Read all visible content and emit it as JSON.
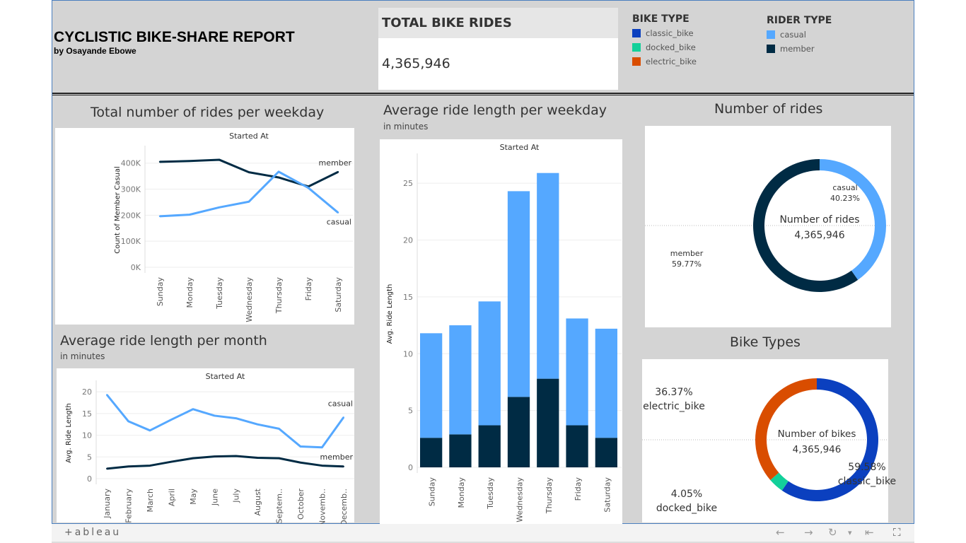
{
  "header": {
    "title": "CYCLISTIC BIKE-SHARE REPORT",
    "subtitle": "by Osayande Ebowe"
  },
  "kpi": {
    "label": "TOTAL BIKE RIDES",
    "value": "4,365,946"
  },
  "legends": {
    "bike_type": {
      "title": "BIKE TYPE",
      "items": [
        {
          "label": "classic_bike",
          "color": "#0b40bf"
        },
        {
          "label": "docked_bike",
          "color": "#13d09a"
        },
        {
          "label": "electric_bike",
          "color": "#d94d00"
        }
      ]
    },
    "rider_type": {
      "title": "RIDER TYPE",
      "items": [
        {
          "label": "casual",
          "color": "#55a8ff"
        },
        {
          "label": "member",
          "color": "#002b44"
        }
      ]
    }
  },
  "footer": {
    "brand": "+ableau",
    "back": "←",
    "forward": "→",
    "refresh": "↻",
    "dropdown": "▾",
    "reset": "⇤",
    "fullscreen": "⛶"
  },
  "chart_data": [
    {
      "id": "weekday_count",
      "type": "line",
      "title": "Total number of rides per weekday",
      "header": "Started At",
      "ylabel": "Count of Member Casual",
      "categories": [
        "Sunday",
        "Monday",
        "Tuesday",
        "Wednesday",
        "Thursday",
        "Friday",
        "Saturday"
      ],
      "yticks": [
        "0K",
        "100K",
        "200K",
        "300K",
        "400K"
      ],
      "ylim": [
        0,
        440000
      ],
      "grid": true,
      "series": [
        {
          "name": "member",
          "color": "#002b44",
          "values": [
            405000,
            408000,
            413000,
            365000,
            345000,
            310000,
            366000
          ]
        },
        {
          "name": "casual",
          "color": "#55a8ff",
          "values": [
            196000,
            202000,
            230000,
            252000,
            367000,
            305000,
            210000
          ]
        }
      ]
    },
    {
      "id": "month_len",
      "type": "line",
      "title": "Average ride length per month",
      "subtitle": "in minutes",
      "header": "Started At",
      "ylabel": "Avg. Ride Length",
      "categories": [
        "January",
        "February",
        "March",
        "April",
        "May",
        "June",
        "July",
        "August",
        "Septem..",
        "October",
        "Novemb..",
        "Decemb.."
      ],
      "yticks": [
        "0",
        "5",
        "10",
        "15",
        "20"
      ],
      "ylim": [
        0,
        21
      ],
      "grid": true,
      "series": [
        {
          "name": "casual",
          "color": "#55a8ff",
          "values": [
            19.3,
            13.2,
            11.1,
            13.6,
            16.0,
            14.5,
            13.9,
            12.5,
            11.5,
            7.4,
            7.2,
            14.1
          ]
        },
        {
          "name": "member",
          "color": "#002b44",
          "values": [
            2.3,
            2.8,
            3.0,
            3.9,
            4.7,
            5.1,
            5.2,
            4.8,
            4.7,
            3.7,
            3.0,
            2.8
          ]
        }
      ]
    },
    {
      "id": "weekday_len",
      "type": "bar",
      "stacked": true,
      "title": "Average ride length  per weekday",
      "subtitle": "in minutes",
      "header": "Started At",
      "ylabel": "Avg. Ride Length",
      "categories": [
        "Sunday",
        "Monday",
        "Tuesday",
        "Wednesday",
        "Thursday",
        "Friday",
        "Saturday"
      ],
      "yticks": [
        "0",
        "5",
        "10",
        "15",
        "20",
        "25"
      ],
      "ylim": [
        0,
        27
      ],
      "grid": true,
      "series": [
        {
          "name": "member",
          "color": "#002b44",
          "values": [
            2.6,
            2.9,
            3.7,
            6.2,
            7.8,
            3.7,
            2.6
          ]
        },
        {
          "name": "casual",
          "color": "#55a8ff",
          "values": [
            9.2,
            9.6,
            10.9,
            18.1,
            18.1,
            9.4,
            9.6
          ]
        }
      ]
    },
    {
      "id": "rides_donut",
      "type": "pie",
      "title": "Number of rides",
      "center_label": "Number of rides",
      "center_value": "4,365,946",
      "slices": [
        {
          "label": "casual",
          "value": 40.23,
          "pct": "40.23%",
          "color": "#55a8ff"
        },
        {
          "label": "member",
          "value": 59.77,
          "pct": "59.77%",
          "color": "#002b44"
        }
      ]
    },
    {
      "id": "bikes_donut",
      "type": "pie",
      "title": "Bike Types",
      "center_label": "Number of bikes",
      "center_value": "4,365,946",
      "slices": [
        {
          "label": "classic_bike",
          "value": 59.58,
          "pct": "59.58%",
          "color": "#0b40bf"
        },
        {
          "label": "docked_bike",
          "value": 4.05,
          "pct": "4.05%",
          "color": "#13d09a"
        },
        {
          "label": "electric_bike",
          "value": 36.37,
          "pct": "36.37%",
          "color": "#d94d00"
        }
      ]
    }
  ]
}
